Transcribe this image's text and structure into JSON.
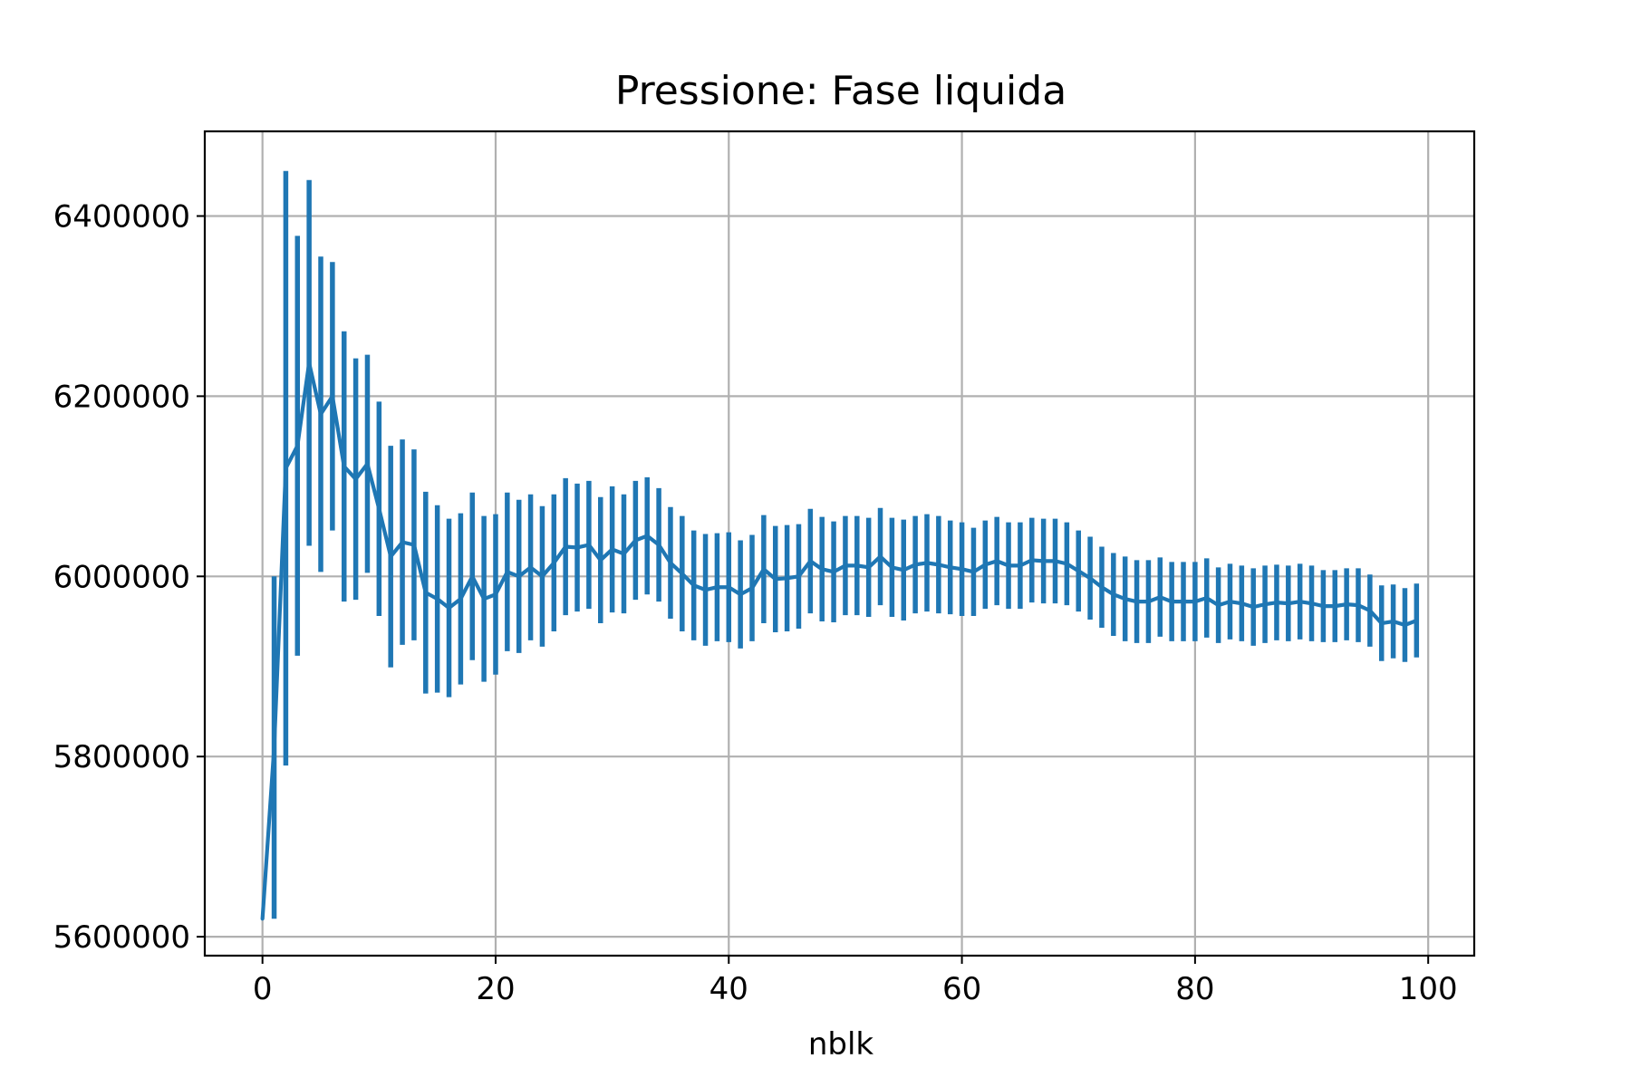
{
  "chart_data": {
    "type": "line",
    "title": "Pressione: Fase liquida",
    "xlabel": "nblk",
    "ylabel": "",
    "xlim": [
      -4.95,
      103.95
    ],
    "ylim": [
      5579000,
      6494000
    ],
    "xticks": [
      0,
      20,
      40,
      60,
      80,
      100
    ],
    "xtick_labels": [
      "0",
      "20",
      "40",
      "60",
      "80",
      "100"
    ],
    "yticks": [
      5600000,
      5800000,
      6000000,
      6200000,
      6400000
    ],
    "ytick_labels": [
      "5600000",
      "5800000",
      "6000000",
      "6200000",
      "6400000"
    ],
    "grid": true,
    "colors": {
      "series": "#1f77b4",
      "grid": "#b0b0b0",
      "axes": "#000000"
    },
    "series": [
      {
        "x": [
          0,
          1,
          2,
          3,
          4,
          5,
          6,
          7,
          8,
          9,
          10,
          11,
          12,
          13,
          14,
          15,
          16,
          17,
          18,
          19,
          20,
          21,
          22,
          23,
          24,
          25,
          26,
          27,
          28,
          29,
          30,
          31,
          32,
          33,
          34,
          35,
          36,
          37,
          38,
          39,
          40,
          41,
          42,
          43,
          44,
          45,
          46,
          47,
          48,
          49,
          50,
          51,
          52,
          53,
          54,
          55,
          56,
          57,
          58,
          59,
          60,
          61,
          62,
          63,
          64,
          65,
          66,
          67,
          68,
          69,
          70,
          71,
          72,
          73,
          74,
          75,
          76,
          77,
          78,
          79,
          80,
          81,
          82,
          83,
          84,
          85,
          86,
          87,
          88,
          89,
          90,
          91,
          92,
          93,
          94,
          95,
          96,
          97,
          98,
          99
        ],
        "y": [
          5620000,
          5810000,
          6120000,
          6145000,
          6237000,
          6180000,
          6200000,
          6122000,
          6108000,
          6125000,
          6075000,
          6022000,
          6038000,
          6035000,
          5982000,
          5975000,
          5965000,
          5975000,
          6000000,
          5975000,
          5980000,
          6005000,
          6000000,
          6010000,
          6000000,
          6015000,
          6033000,
          6032000,
          6035000,
          6018000,
          6030000,
          6025000,
          6040000,
          6045000,
          6035000,
          6015000,
          6003000,
          5990000,
          5985000,
          5988000,
          5988000,
          5980000,
          5987000,
          6008000,
          5997000,
          5998000,
          6000000,
          6017000,
          6008000,
          6005000,
          6012000,
          6012000,
          6010000,
          6022000,
          6010000,
          6007000,
          6013000,
          6015000,
          6013000,
          6010000,
          6008000,
          6005000,
          6013000,
          6017000,
          6012000,
          6012000,
          6018000,
          6017000,
          6017000,
          6014000,
          6006000,
          5998000,
          5988000,
          5980000,
          5975000,
          5972000,
          5972000,
          5977000,
          5972000,
          5972000,
          5972000,
          5976000,
          5968000,
          5972000,
          5970000,
          5966000,
          5969000,
          5971000,
          5970000,
          5972000,
          5970000,
          5967000,
          5967000,
          5969000,
          5968000,
          5962000,
          5948000,
          5950000,
          5946000,
          5951000
        ],
        "err": [
          0,
          190000,
          330000,
          233000,
          203000,
          175000,
          149000,
          150000,
          134000,
          121000,
          119000,
          123000,
          114000,
          106000,
          112000,
          104000,
          99000,
          95000,
          93000,
          92000,
          89000,
          88000,
          85000,
          81000,
          78000,
          76000,
          76000,
          71000,
          71000,
          70000,
          70000,
          66000,
          66000,
          65000,
          63000,
          62000,
          64000,
          61000,
          62000,
          60000,
          61000,
          60000,
          59000,
          60000,
          59000,
          59000,
          58000,
          58000,
          58000,
          56000,
          55000,
          55000,
          55000,
          54000,
          55000,
          56000,
          54000,
          54000,
          54000,
          52000,
          52000,
          49000,
          49000,
          49000,
          48000,
          48000,
          47000,
          47000,
          47000,
          46000,
          45000,
          46000,
          45000,
          46000,
          47000,
          46000,
          46000,
          44000,
          44000,
          44000,
          44000,
          44000,
          42000,
          42000,
          42000,
          43000,
          43000,
          42000,
          42000,
          42000,
          42000,
          40000,
          40000,
          40000,
          41000,
          40000,
          42000,
          41000,
          41000,
          41000
        ]
      }
    ]
  }
}
